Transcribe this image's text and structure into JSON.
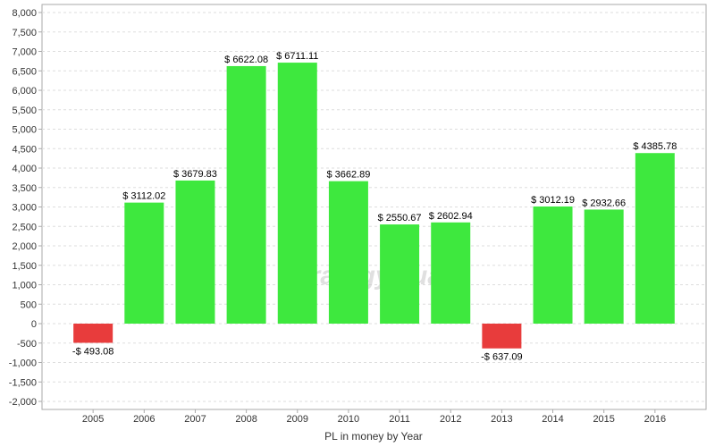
{
  "chart_data": {
    "type": "bar",
    "title": "",
    "xlabel": "PL in money by Year",
    "ylabel": "",
    "ylim": [
      -2000,
      8000
    ],
    "ytick_step": 500,
    "grid": true,
    "categories": [
      "2005",
      "2006",
      "2007",
      "2008",
      "2009",
      "2010",
      "2011",
      "2012",
      "2013",
      "2014",
      "2015",
      "2016"
    ],
    "values": [
      -493.08,
      3112.02,
      3679.83,
      6622.08,
      6711.11,
      3662.89,
      2550.67,
      2602.94,
      -637.09,
      3012.19,
      2932.66,
      4385.78
    ],
    "data_labels": [
      "-$ 493.08",
      "$ 3112.02",
      "$ 3679.83",
      "$ 6622.08",
      "$ 6711.11",
      "$ 3662.89",
      "$ 2550.67",
      "$ 2602.94",
      "-$ 637.09",
      "$ 3012.19",
      "$ 2932.66",
      "$ 4385.78"
    ],
    "colors": {
      "positive": "#3ee83e",
      "negative": "#e83c3c",
      "grid": "#dddddd",
      "axis": "#aaaaaa"
    },
    "watermark": "StrategyQuant"
  }
}
